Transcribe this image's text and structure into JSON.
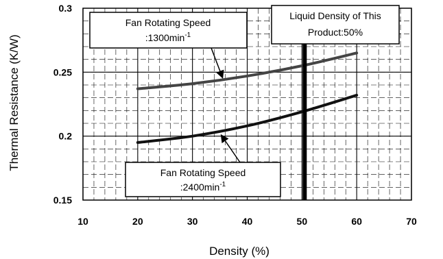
{
  "chart_data": {
    "type": "line",
    "title": "",
    "xlabel": "Density (%)",
    "ylabel": "Thermal Resistance (K/W)",
    "xlim": [
      10,
      70
    ],
    "ylim": [
      0.15,
      0.3
    ],
    "x_ticks": [
      "10",
      "20",
      "30",
      "40",
      "50",
      "60",
      "70"
    ],
    "y_ticks": [
      "0.15",
      "0.2",
      "0.25",
      "0.3"
    ],
    "grid": true,
    "legend": "none",
    "series": [
      {
        "name": "",
        "color": "#444444",
        "x": [
          20,
          30,
          40,
          50,
          60
        ],
        "y": [
          0.237,
          0.241,
          0.247,
          0.255,
          0.265
        ]
      },
      {
        "name": "",
        "color": "#111111",
        "x": [
          20,
          30,
          40,
          50,
          60
        ],
        "y": [
          0.195,
          0.2,
          0.208,
          0.219,
          0.232
        ]
      }
    ],
    "marker_line": {
      "x": 50.5,
      "color": "#000000"
    },
    "annotations": [
      {
        "id": "fan1300",
        "line1": "Fan Rotating Speed",
        "line2_prefix": ":1300min",
        "line2_sup": "-1",
        "arrow_to": [
          35.5,
          0.244
        ]
      },
      {
        "id": "fan2400",
        "line1": "Fan Rotating Speed",
        "line2_prefix": ":2400min",
        "line2_sup": "-1",
        "arrow_to": [
          35,
          0.203
        ]
      },
      {
        "id": "liquid",
        "line1": "Liquid Density of This",
        "line2_prefix": "Product:50%",
        "line2_sup": ""
      }
    ]
  }
}
